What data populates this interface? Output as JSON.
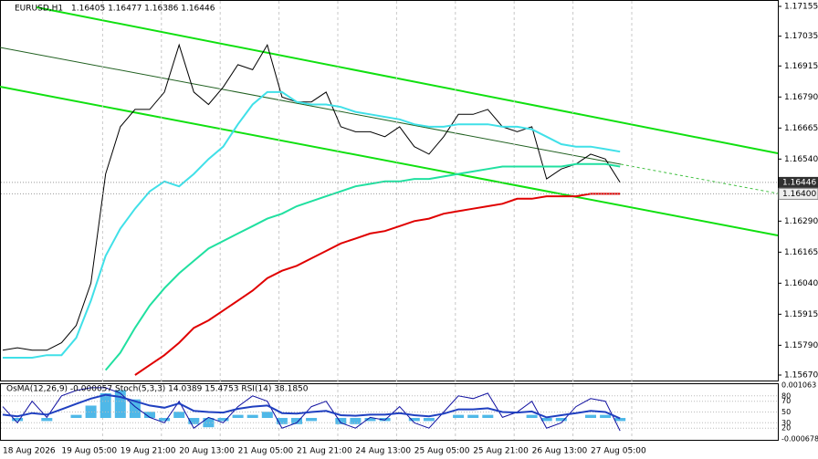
{
  "chart_data": [
    {
      "type": "line",
      "title": "EURUSD,H1",
      "quote": "1.16405 1.16477 1.16386 1.16446",
      "categories": [
        "18 Aug 2026",
        null,
        null,
        null,
        "19 Aug 05:00",
        null,
        null,
        null,
        "19 Aug 21:00",
        null,
        null,
        null,
        "20 Aug 13:00",
        null,
        null,
        null,
        "21 Aug 05:00",
        null,
        null,
        null,
        "21 Aug 21:00",
        null,
        null,
        null,
        "24 Aug 13:00",
        null,
        null,
        null,
        "25 Aug 05:00",
        null,
        null,
        null,
        "25 Aug 21:00",
        null,
        null,
        null,
        "26 Aug 13:00",
        null,
        null,
        null,
        "27 Aug 05:00",
        null,
        null
      ],
      "series": [
        {
          "color": "#000000",
          "values": [
            1.1577,
            1.1578,
            1.1577,
            1.1577,
            1.158,
            1.1587,
            1.1604,
            1.1648,
            1.1667,
            1.1674,
            1.1674,
            1.1681,
            1.17,
            1.1681,
            1.1676,
            1.1683,
            1.1692,
            1.169,
            1.17,
            1.1679,
            1.1677,
            1.1677,
            1.1681,
            1.1667,
            1.1665,
            1.1665,
            1.1663,
            1.1667,
            1.1659,
            1.1656,
            1.1663,
            1.1672,
            1.1672,
            1.1674,
            1.1667,
            1.1665,
            1.1667,
            1.1646,
            1.165,
            1.1652,
            1.1656,
            1.1654,
            1.16446
          ]
        },
        {
          "color": "#40e0e8",
          "values": [
            1.1574,
            1.1574,
            1.1574,
            1.1575,
            1.1575,
            1.1582,
            1.1597,
            1.1615,
            1.1626,
            1.1634,
            1.1641,
            1.1645,
            1.1643,
            1.1648,
            1.1654,
            1.1659,
            1.1668,
            1.1676,
            1.1681,
            1.1681,
            1.1677,
            1.1676,
            1.1676,
            1.1675,
            1.1673,
            1.1672,
            1.1671,
            1.167,
            1.1668,
            1.1667,
            1.1667,
            1.1668,
            1.1668,
            1.1668,
            1.1667,
            1.1667,
            1.1666,
            1.1663,
            1.166,
            1.1659,
            1.1659,
            1.1658,
            1.1657
          ]
        },
        {
          "color": "#20e0a0",
          "values": [
            null,
            null,
            null,
            null,
            null,
            null,
            null,
            1.1569,
            1.1576,
            1.1586,
            1.1595,
            1.1602,
            1.1608,
            1.1613,
            1.1618,
            1.1621,
            1.1624,
            1.1627,
            1.163,
            1.1632,
            1.1635,
            1.1637,
            1.1639,
            1.1641,
            1.1643,
            1.1644,
            1.1645,
            1.1645,
            1.1646,
            1.1646,
            1.1647,
            1.1648,
            1.1649,
            1.165,
            1.1651,
            1.1651,
            1.1651,
            1.1651,
            1.1651,
            1.1652,
            1.1652,
            1.1652,
            1.1651
          ]
        },
        {
          "color": "#e00000",
          "values": [
            null,
            null,
            null,
            null,
            null,
            null,
            null,
            null,
            null,
            1.1567,
            1.1571,
            1.1575,
            1.158,
            1.1586,
            1.1589,
            1.1593,
            1.1597,
            1.1601,
            1.1606,
            1.1609,
            1.1611,
            1.1614,
            1.1617,
            1.162,
            1.1622,
            1.1624,
            1.1625,
            1.1627,
            1.1629,
            1.163,
            1.1632,
            1.1633,
            1.1634,
            1.1635,
            1.1636,
            1.1638,
            1.1638,
            1.1639,
            1.1639,
            1.1639,
            1.164,
            1.164,
            1.164
          ]
        }
      ],
      "ylim": [
        1.1567,
        1.17155
      ],
      "yticks": [
        1.17155,
        1.17035,
        1.16915,
        {
          "value": 1.1679,
          "label": "1.16790"
        },
        1.16665,
        {
          "value": 1.1654,
          "label": "1.16540"
        },
        {
          "value": 1.1629,
          "label": "1.16290"
        },
        1.16165,
        {
          "value": 1.1604,
          "label": "1.16040"
        },
        1.15915,
        {
          "value": 1.1579,
          "label": "1.15790"
        },
        {
          "value": 1.1567,
          "label": "1.15670"
        }
      ],
      "bid": 1.16446,
      "level": {
        "value": 1.164,
        "label": "1.16400"
      },
      "grid": true
    },
    {
      "type": "osma",
      "title": "OsMA(12,26,9) -0.000057 Stoch(5,3,3) 14.0389 15.4753 RSI(14) 38.1850",
      "histogram": {
        "color": "#4fb8e8",
        "values": [
          0,
          -0.0001,
          0,
          -0.0001,
          0,
          0.0001,
          0.0004,
          0.0008,
          0.0009,
          0.0006,
          0.0002,
          -0.0001,
          0.0002,
          -0.0002,
          -0.0003,
          -0.0001,
          0.0001,
          0.0001,
          0.0002,
          -0.0002,
          -0.0002,
          -0.0001,
          0,
          -0.0002,
          -0.0002,
          -0.0001,
          -0.0001,
          0,
          -0.0001,
          -0.0001,
          0,
          0.0001,
          0.0001,
          0.0001,
          0,
          0,
          0.0001,
          -0.0001,
          -0.0001,
          0,
          0.0001,
          0.0001,
          -0.0001
        ]
      },
      "ylim": [
        -0.000678,
        0.001063
      ],
      "yticks": [
        0.001063,
        -0.000678
      ],
      "series": [
        {
          "color": "#1010a0",
          "axis": "y2",
          "values": [
            60,
            30,
            70,
            40,
            80,
            90,
            95,
            95,
            85,
            60,
            40,
            30,
            70,
            20,
            40,
            30,
            60,
            80,
            70,
            20,
            30,
            60,
            70,
            30,
            20,
            40,
            35,
            60,
            30,
            20,
            50,
            80,
            75,
            85,
            40,
            50,
            70,
            20,
            30,
            60,
            75,
            70,
            15
          ]
        },
        {
          "color": "#2040c0",
          "axis": "y2",
          "values": [
            45,
            42,
            48,
            45,
            55,
            65,
            75,
            82,
            78,
            70,
            62,
            58,
            66,
            52,
            50,
            49,
            56,
            60,
            62,
            48,
            47,
            50,
            52,
            44,
            43,
            45,
            45,
            48,
            44,
            42,
            47,
            55,
            55,
            57,
            50,
            49,
            51,
            40,
            44,
            48,
            52,
            50,
            38
          ]
        }
      ],
      "y2lim": [
        0,
        100
      ],
      "y2ticks": [
        80,
        70,
        50,
        30,
        20
      ]
    }
  ]
}
